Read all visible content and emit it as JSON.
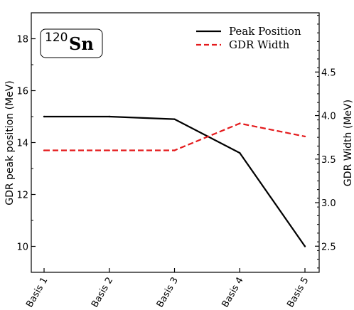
{
  "chart_data": {
    "type": "line",
    "categories": [
      "Basis 1",
      "Basis 2",
      "Basis 3",
      "Basis 4",
      "Basis 5"
    ],
    "series": [
      {
        "name": "Peak Position",
        "axis": "left",
        "values": [
          15.0,
          15.0,
          14.9,
          13.6,
          10.0
        ],
        "color": "#000000",
        "line_style": "solid"
      },
      {
        "name": "GDR Width",
        "axis": "right",
        "values": [
          3.6,
          3.6,
          3.6,
          3.91,
          3.76
        ],
        "color": "#e41a1c",
        "line_style": "dashed"
      }
    ],
    "ylabel_left": "GDR peak position (MeV)",
    "ylabel_right": "GDR Width (MeV)",
    "ylim_left": [
      9.0,
      19.0
    ],
    "ylim_right": [
      2.2,
      5.18
    ],
    "yticks_left": [
      10,
      12,
      14,
      16,
      18
    ],
    "yticks_right": [
      2.5,
      3.0,
      3.5,
      4.0,
      4.5
    ],
    "grid": false,
    "legend_position": "top-right",
    "annotation": {
      "mass_number": "120",
      "element": "Sn"
    }
  }
}
